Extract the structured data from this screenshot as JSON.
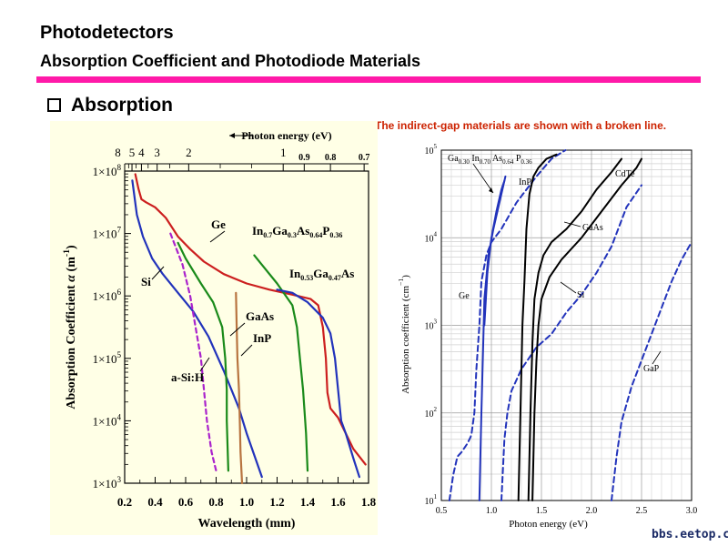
{
  "header": {
    "title": "Photodetectors",
    "subtitle": "Absorption Coefficient and Photodiode Materials"
  },
  "section": {
    "bullet_title": "Absorption"
  },
  "note": "The indirect-gap materials are shown with a broken line.",
  "watermark": "bbs.eetop.cn",
  "colors": {
    "accent_rule": "#ff1aa8",
    "note_text": "#cc2200",
    "left_panel_bg": "#ffffe6"
  },
  "chart_data": [
    {
      "type": "line",
      "ylabel_main": "Absorption Coefficient",
      "ylabel_symbol": "α",
      "ylabel_units": "(m",
      "ylabel_exp": "-1",
      "ylabel_close": ")",
      "xlabel": "Wavelength (mm)",
      "x_ticks": [
        "0.2",
        "0.4",
        "0.6",
        "0.8",
        "1.0",
        "1.2",
        "1.4",
        "1.6",
        "1.8"
      ],
      "xlim": [
        0.2,
        1.8
      ],
      "y_log": true,
      "y_ticks": [
        {
          "mant": "1×10",
          "exp": "8",
          "v": 8
        },
        {
          "mant": "1×10",
          "exp": "7",
          "v": 7
        },
        {
          "mant": "1×10",
          "exp": "6",
          "v": 6
        },
        {
          "mant": "1×10",
          "exp": "5",
          "v": 5
        },
        {
          "mant": "1×10",
          "exp": "4",
          "v": 4
        },
        {
          "mant": "1×10",
          "exp": "3",
          "v": 3
        }
      ],
      "ylim_log": [
        3,
        8
      ],
      "top_axis_label": "Photon energy (eV)",
      "top_ticks_large": [
        {
          "label": "8",
          "x": 0.155
        },
        {
          "label": "5",
          "x": 0.248
        },
        {
          "label": "4",
          "x": 0.31
        },
        {
          "label": "3",
          "x": 0.413
        },
        {
          "label": "2",
          "x": 0.62
        },
        {
          "label": "1",
          "x": 1.24
        }
      ],
      "top_ticks_small": [
        {
          "label": "0.9",
          "x": 1.378
        },
        {
          "label": "0.8",
          "x": 1.55
        },
        {
          "label": "0.7",
          "x": 1.771
        }
      ],
      "series": [
        {
          "name": "Ge",
          "color": "#cc1f1f",
          "dashed": false,
          "x": [
            0.27,
            0.29,
            0.31,
            0.34,
            0.4,
            0.47,
            0.55,
            0.63,
            0.72,
            0.85,
            1.0,
            1.15,
            1.3,
            1.42,
            1.47,
            1.5,
            1.52,
            1.53,
            1.55,
            1.6,
            1.7,
            1.78
          ],
          "y": [
            7.95,
            7.72,
            7.55,
            7.5,
            7.42,
            7.25,
            6.95,
            6.75,
            6.55,
            6.35,
            6.2,
            6.1,
            6.02,
            5.95,
            5.85,
            5.5,
            5.0,
            4.45,
            4.2,
            4.05,
            3.55,
            3.3
          ]
        },
        {
          "name": "Si",
          "color": "#2233bb",
          "dashed": false,
          "x": [
            0.25,
            0.28,
            0.32,
            0.38,
            0.45,
            0.55,
            0.65,
            0.75,
            0.85,
            0.95,
            1.0,
            1.05,
            1.1
          ],
          "y": [
            7.85,
            7.3,
            6.95,
            6.6,
            6.35,
            6.05,
            5.75,
            5.35,
            4.8,
            4.2,
            3.8,
            3.45,
            3.1
          ]
        },
        {
          "name": "a-Si:H",
          "color": "#aa22cc",
          "dashed": true,
          "x": [
            0.5,
            0.58,
            0.63,
            0.7,
            0.72,
            0.74,
            0.77,
            0.8
          ],
          "y": [
            7.0,
            6.5,
            6.0,
            5.0,
            4.5,
            4.0,
            3.5,
            3.2
          ]
        },
        {
          "name": "GaAs",
          "color": "#1a8a1a",
          "dashed": false,
          "x": [
            0.55,
            0.6,
            0.7,
            0.78,
            0.84,
            0.86,
            0.87,
            0.87,
            0.88
          ],
          "y": [
            6.85,
            6.6,
            6.2,
            5.9,
            5.5,
            5.0,
            4.5,
            4.0,
            3.2
          ]
        },
        {
          "name": "InP",
          "color": "#b87440",
          "dashed": false,
          "x": [
            0.93,
            0.935,
            0.94,
            0.95,
            0.955,
            0.96,
            0.97
          ],
          "y": [
            6.05,
            5.5,
            5.0,
            4.5,
            4.0,
            3.5,
            3.0
          ]
        },
        {
          "name": "In",
          "name_sub_1": "0.7",
          "name_mid_1": "Ga",
          "name_sub_2": "0.3",
          "name_mid_2": "As",
          "name_sub_3": "0.64",
          "name_mid_3": "P",
          "name_sub_4": "0.36",
          "color": "#1a8a1a",
          "dashed": false,
          "x": [
            1.05,
            1.1,
            1.2,
            1.3,
            1.33,
            1.35,
            1.37,
            1.39,
            1.4
          ],
          "y": [
            6.65,
            6.5,
            6.2,
            5.85,
            5.5,
            5.0,
            4.5,
            3.8,
            3.2
          ]
        },
        {
          "name": "In",
          "name_sub_1": "0.53",
          "name_mid_1": "Ga",
          "name_sub_2": "0.47",
          "name_mid_2": "As",
          "color": "#2233bb",
          "dashed": false,
          "x": [
            1.2,
            1.3,
            1.4,
            1.5,
            1.55,
            1.58,
            1.6,
            1.62,
            1.65,
            1.7,
            1.74
          ],
          "y": [
            6.1,
            6.05,
            5.9,
            5.65,
            5.4,
            5.0,
            4.5,
            4.0,
            3.8,
            3.4,
            3.1
          ]
        }
      ]
    },
    {
      "type": "line",
      "xlabel": "Photon energy (eV)",
      "ylabel": "Absorption coefficient (cm",
      "ylabel_exp": "−1",
      "ylabel_close": ")",
      "x_ticks": [
        "0.5",
        "1.0",
        "1.5",
        "2.0",
        "2.5",
        "3.0"
      ],
      "xlim": [
        0.5,
        3.0
      ],
      "y_log": true,
      "y_ticks": [
        {
          "mant": "10",
          "exp": "5",
          "v": 5
        },
        {
          "mant": "10",
          "exp": "4",
          "v": 4
        },
        {
          "mant": "10",
          "exp": "3",
          "v": 3
        },
        {
          "mant": "10",
          "exp": "2",
          "v": 2
        },
        {
          "mant": "10",
          "exp": "1",
          "v": 1
        }
      ],
      "ylim_log": [
        1,
        5
      ],
      "grid": true,
      "series": [
        {
          "name": "Ge",
          "color": "#2233bb",
          "dashed": false,
          "x": [
            0.88,
            0.9,
            0.93,
            0.97,
            1.02,
            1.06,
            1.1,
            1.14
          ],
          "y": [
            1.0,
            2.0,
            3.3,
            3.8,
            4.1,
            4.3,
            4.5,
            4.7
          ]
        },
        {
          "name": "Ge (indirect)",
          "color": "#2233bb",
          "dashed": true,
          "x": [
            0.58,
            0.62,
            0.66,
            0.7,
            0.73,
            0.76,
            0.79,
            0.8,
            0.83,
            0.85,
            0.88,
            0.9,
            0.95,
            1.0,
            1.1,
            1.25,
            1.45,
            1.6,
            1.74
          ],
          "y": [
            1.0,
            1.3,
            1.5,
            1.55,
            1.6,
            1.65,
            1.72,
            1.75,
            2.0,
            2.5,
            3.0,
            3.5,
            3.8,
            3.95,
            4.1,
            4.4,
            4.7,
            4.9,
            5.0
          ]
        },
        {
          "name": "Si",
          "color": "#2233bb",
          "dashed": true,
          "x": [
            1.1,
            1.13,
            1.16,
            1.2,
            1.3,
            1.45,
            1.6,
            1.75,
            1.9,
            2.05,
            2.2,
            2.35,
            2.5
          ],
          "y": [
            1.0,
            1.7,
            2.0,
            2.25,
            2.5,
            2.75,
            2.9,
            3.15,
            3.35,
            3.6,
            3.9,
            4.35,
            4.6
          ]
        },
        {
          "name": "GaP",
          "color": "#2233bb",
          "dashed": true,
          "x": [
            2.2,
            2.25,
            2.3,
            2.4,
            2.5,
            2.6,
            2.7,
            2.8,
            2.9,
            3.0
          ],
          "y": [
            1.0,
            1.5,
            1.9,
            2.3,
            2.6,
            2.9,
            3.2,
            3.5,
            3.75,
            3.95
          ]
        },
        {
          "name": "InP",
          "color": "#000000",
          "dashed": false,
          "x": [
            1.27,
            1.29,
            1.31,
            1.33,
            1.35,
            1.38,
            1.42,
            1.47,
            1.55,
            1.65
          ],
          "y": [
            1.0,
            2.0,
            3.0,
            3.5,
            4.1,
            4.5,
            4.7,
            4.8,
            4.9,
            4.95
          ]
        },
        {
          "name": "GaAs",
          "color": "#000000",
          "dashed": false,
          "x": [
            1.37,
            1.39,
            1.41,
            1.43,
            1.47,
            1.52,
            1.6,
            1.75,
            1.9,
            2.05,
            2.2,
            2.3
          ],
          "y": [
            1.0,
            2.0,
            2.8,
            3.3,
            3.6,
            3.8,
            3.95,
            4.1,
            4.3,
            4.55,
            4.75,
            4.9
          ]
        },
        {
          "name": "CdTe",
          "color": "#000000",
          "dashed": false,
          "x": [
            1.41,
            1.43,
            1.45,
            1.47,
            1.5,
            1.58,
            1.7,
            1.9,
            2.1,
            2.3,
            2.45,
            2.5
          ],
          "y": [
            1.0,
            2.0,
            2.6,
            3.0,
            3.3,
            3.55,
            3.75,
            4.0,
            4.3,
            4.6,
            4.8,
            4.9
          ]
        },
        {
          "name": "Ga",
          "name_sub_1": "0.30",
          "name_mid_1": " In",
          "name_sub_2": "0.70",
          "name_mid_2": " As",
          "name_sub_3": "0.64",
          "name_mid_3": " P",
          "name_sub_4": "0.36",
          "color": "#2233bb",
          "dashed": false,
          "x": [
            0.93,
            0.96,
            1.0,
            1.05,
            1.1,
            1.13
          ],
          "y": [
            3.0,
            3.6,
            4.0,
            4.3,
            4.55,
            4.65
          ]
        }
      ],
      "labels": [
        "Ge",
        "Si",
        "GaP",
        "InP",
        "GaAs",
        "CdTe"
      ]
    }
  ]
}
